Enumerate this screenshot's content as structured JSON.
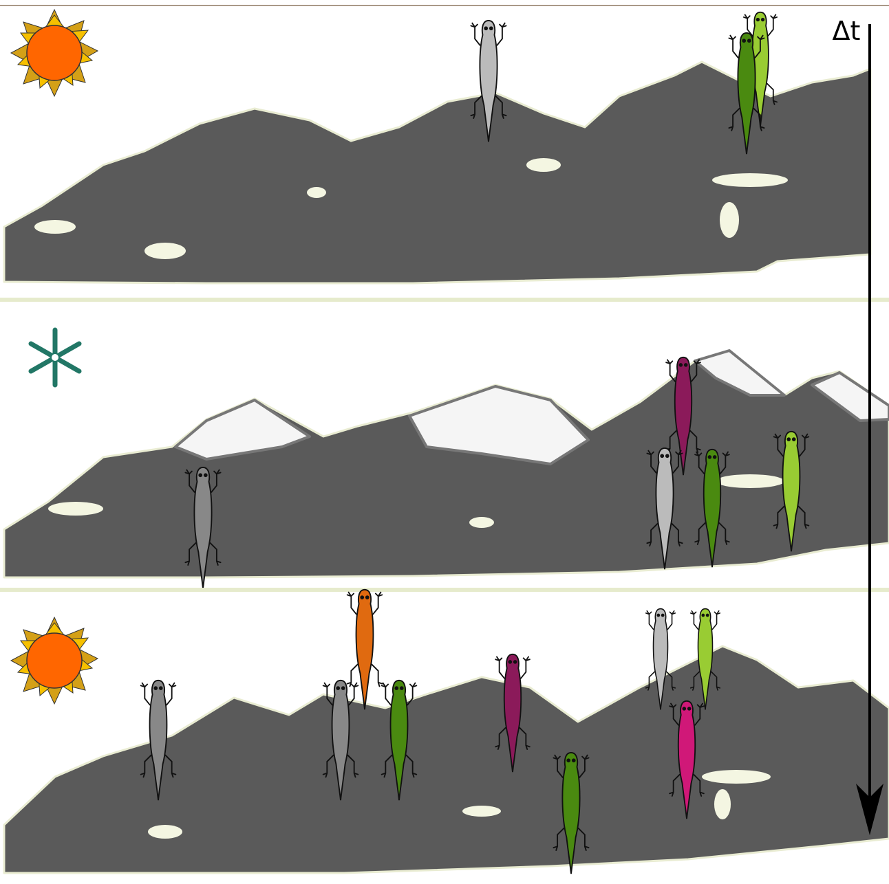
{
  "time_label": "Δt"
}
